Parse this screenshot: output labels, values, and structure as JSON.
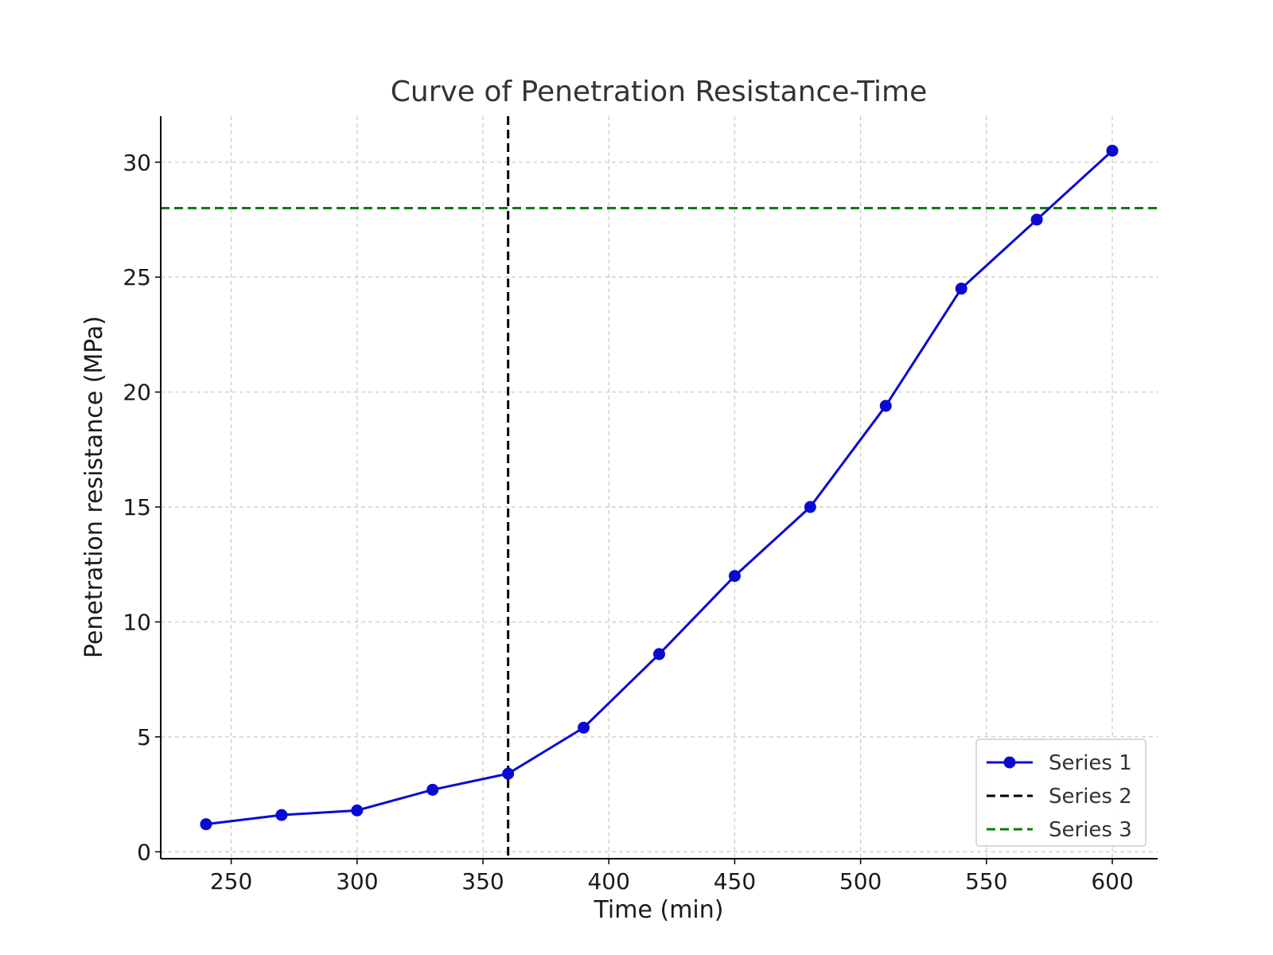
{
  "chart_data": {
    "type": "line",
    "title": "Curve of Penetration Resistance-Time",
    "xlabel": "Time (min)",
    "ylabel": "Penetration resistance (MPa)",
    "xlim": [
      222,
      618
    ],
    "ylim": [
      -0.3,
      32
    ],
    "xticks": [
      250,
      300,
      350,
      400,
      450,
      500,
      550,
      600
    ],
    "yticks": [
      0,
      5,
      10,
      15,
      20,
      25,
      30
    ],
    "grid": true,
    "legend_position": "lower-right",
    "series": [
      {
        "name": "Series 1",
        "kind": "line-markers",
        "color": "#0a0ad2",
        "x": [
          240,
          270,
          300,
          330,
          360,
          390,
          420,
          450,
          480,
          510,
          540,
          570,
          600
        ],
        "y": [
          1.2,
          1.6,
          1.8,
          2.7,
          3.4,
          5.4,
          8.6,
          12.0,
          15.0,
          19.4,
          24.5,
          27.5,
          30.5
        ]
      },
      {
        "name": "Series 2",
        "kind": "vline",
        "color": "#000000",
        "x": 360
      },
      {
        "name": "Series 3",
        "kind": "hline",
        "color": "#0a7d0a",
        "y": 28
      }
    ]
  }
}
